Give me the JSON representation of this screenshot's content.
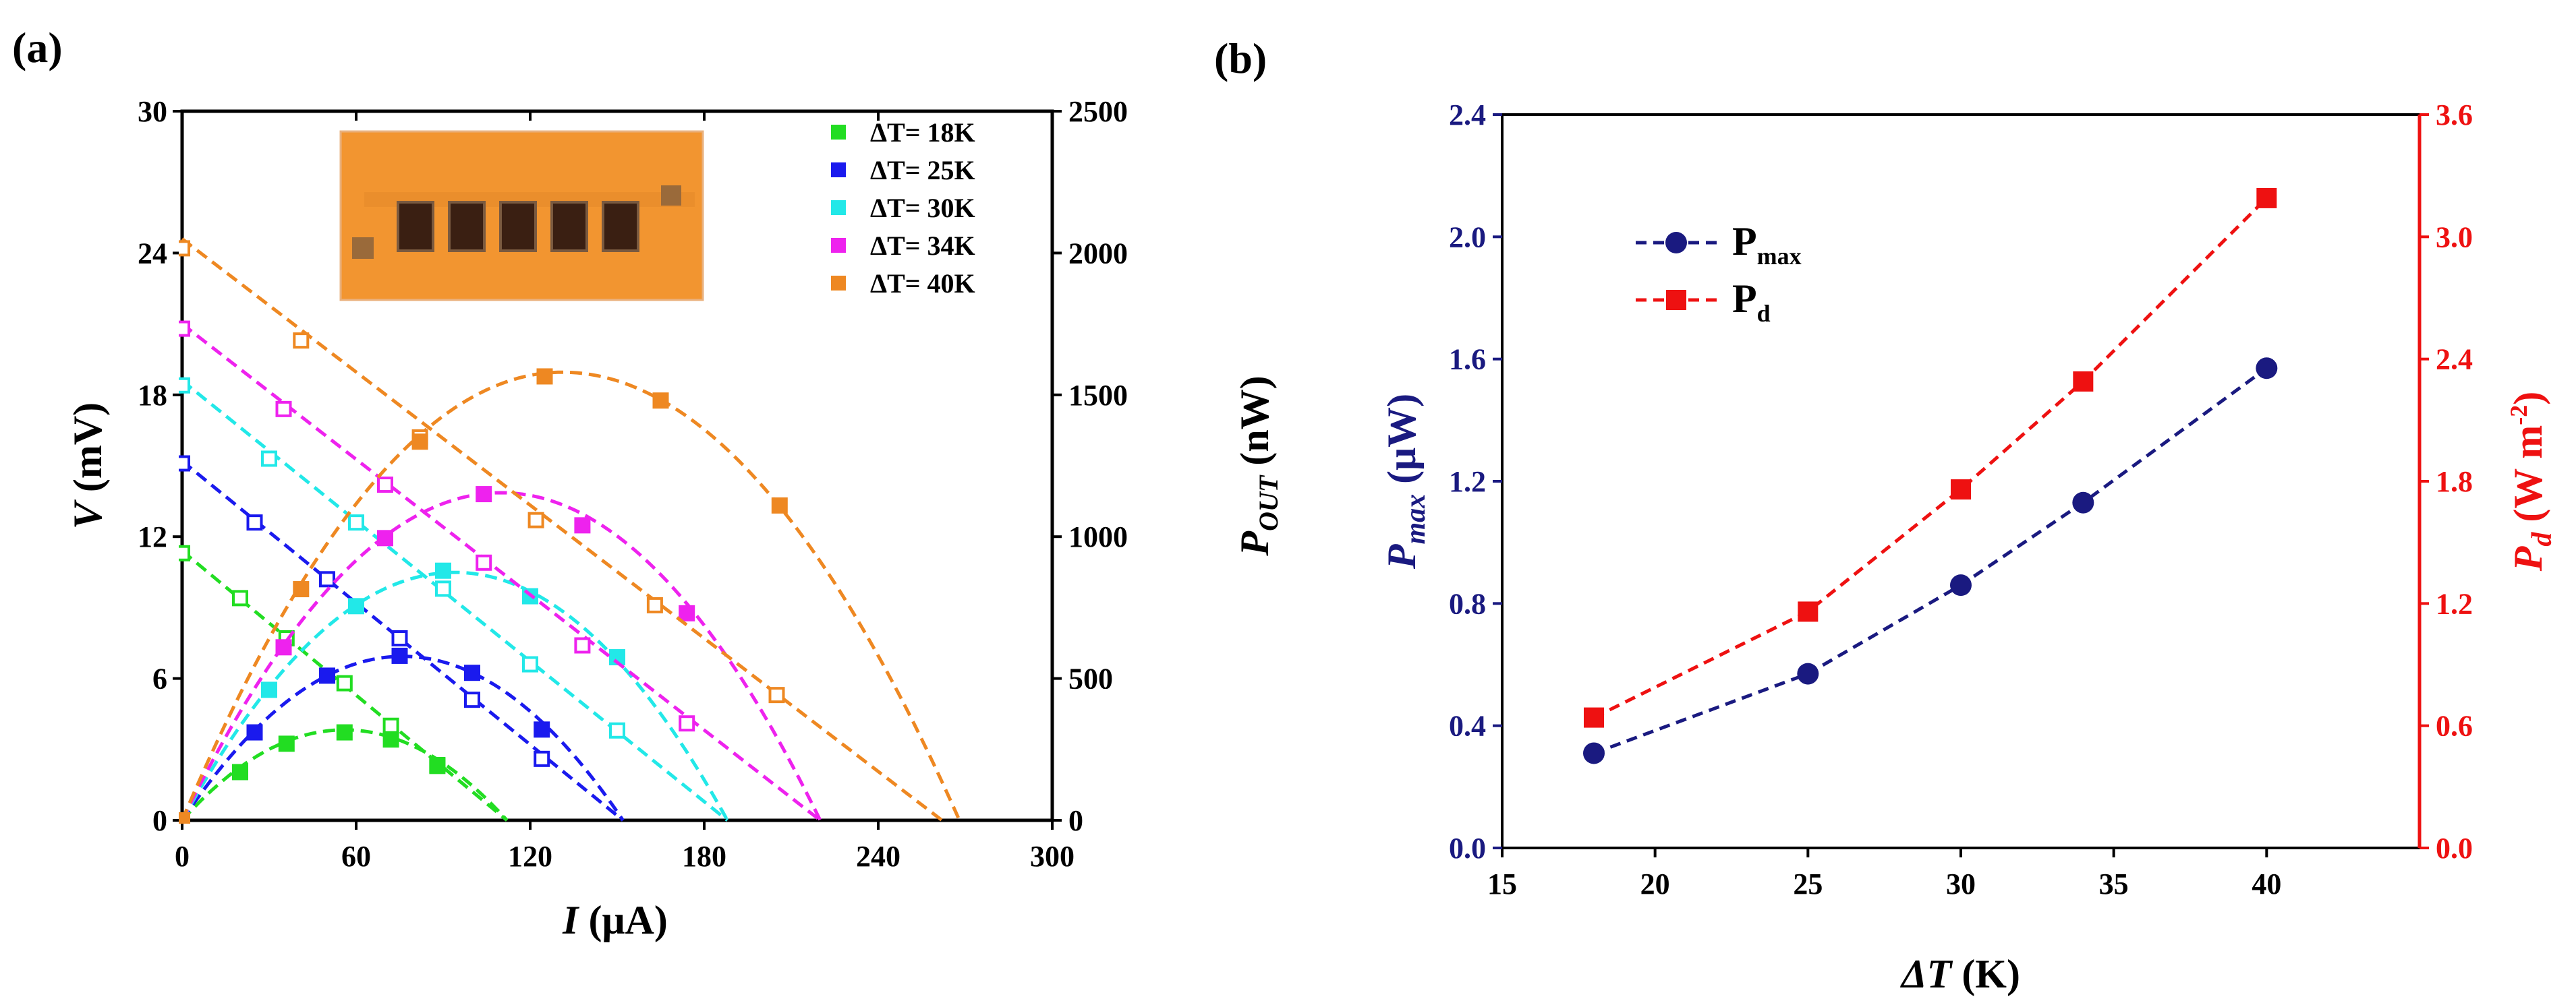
{
  "panels": {
    "a": {
      "label": "(a)"
    },
    "b": {
      "label": "(b)"
    }
  },
  "chart_data": [
    {
      "panel": "(a)",
      "type": "scatter",
      "title": "",
      "xlabel_main": "I",
      "xlabel_unit": " (μA)",
      "ylabel_left_main": "V",
      "ylabel_left_unit": " (mV)",
      "ylabel_right_main": "P",
      "ylabel_right_sub": "OUT",
      "ylabel_right_unit": " (nW)",
      "xlim": [
        0,
        300
      ],
      "ylim_left": [
        0,
        30
      ],
      "ylim_right": [
        0,
        2500
      ],
      "xticks": [
        "0",
        "60",
        "120",
        "180",
        "240",
        "300"
      ],
      "yticks_left": [
        "0",
        "6",
        "12",
        "18",
        "24",
        "30"
      ],
      "yticks_right": [
        "0",
        "500",
        "1000",
        "1500",
        "2000",
        "2500"
      ],
      "legend_position": "top-right",
      "inset": "photograph of device (orange substrate with five dark legs)",
      "series": [
        {
          "name": "ΔT= 18K",
          "color": "#22dd22",
          "voltage_points": [
            [
              0,
              11.3
            ],
            [
              20,
              9.4
            ],
            [
              36,
              7.7
            ],
            [
              56,
              5.8
            ],
            [
              72,
              4.0
            ],
            [
              88,
              2.3
            ]
          ],
          "power_points": [
            [
              0,
              0
            ],
            [
              20,
              170
            ],
            [
              36,
              270
            ],
            [
              56,
              310
            ],
            [
              72,
              285
            ],
            [
              88,
              195
            ]
          ],
          "voltage_fit": [
            [
              0,
              11.4
            ],
            [
              112,
              0
            ]
          ],
          "power_fit_peak": [
            56,
            319
          ],
          "power_fit_zero": 112
        },
        {
          "name": "ΔT= 25K",
          "color": "#1a1aee",
          "voltage_points": [
            [
              0,
              15.1
            ],
            [
              25,
              12.6
            ],
            [
              50,
              10.2
            ],
            [
              75,
              7.7
            ],
            [
              100,
              5.1
            ],
            [
              124,
              2.6
            ]
          ],
          "power_points": [
            [
              0,
              0
            ],
            [
              25,
              310
            ],
            [
              50,
              510
            ],
            [
              75,
              580
            ],
            [
              100,
              520
            ],
            [
              124,
              320
            ]
          ],
          "voltage_fit": [
            [
              0,
              15.2
            ],
            [
              152,
              0
            ]
          ],
          "power_fit_peak": [
            76,
            578
          ],
          "power_fit_zero": 152
        },
        {
          "name": "ΔT= 30K",
          "color": "#22e8e8",
          "voltage_points": [
            [
              0,
              18.4
            ],
            [
              30,
              15.3
            ],
            [
              60,
              12.6
            ],
            [
              90,
              9.8
            ],
            [
              120,
              6.6
            ],
            [
              150,
              3.8
            ]
          ],
          "power_points": [
            [
              0,
              0
            ],
            [
              30,
              460
            ],
            [
              60,
              755
            ],
            [
              90,
              880
            ],
            [
              120,
              790
            ],
            [
              150,
              575
            ]
          ],
          "voltage_fit": [
            [
              0,
              18.6
            ],
            [
              188,
              0
            ]
          ],
          "power_fit_peak": [
            94,
            874
          ],
          "power_fit_zero": 188
        },
        {
          "name": "ΔT= 34K",
          "color": "#ee22ee",
          "voltage_points": [
            [
              0,
              20.8
            ],
            [
              35,
              17.4
            ],
            [
              70,
              14.2
            ],
            [
              104,
              10.9
            ],
            [
              138,
              7.4
            ],
            [
              174,
              4.1
            ]
          ],
          "power_points": [
            [
              0,
              0
            ],
            [
              35,
              610
            ],
            [
              70,
              995
            ],
            [
              104,
              1150
            ],
            [
              138,
              1040
            ],
            [
              174,
              730
            ]
          ],
          "voltage_fit": [
            [
              0,
              21.0
            ],
            [
              220,
              0
            ]
          ],
          "power_fit_peak": [
            110,
            1155
          ],
          "power_fit_zero": 220
        },
        {
          "name": "ΔT= 40K",
          "color": "#ee8822",
          "voltage_points": [
            [
              0,
              24.2
            ],
            [
              41,
              20.3
            ],
            [
              82,
              16.2
            ],
            [
              122,
              12.7
            ],
            [
              163,
              9.1
            ],
            [
              205,
              5.3
            ]
          ],
          "power_points": [
            [
              0,
              0
            ],
            [
              41,
              815
            ],
            [
              82,
              1335
            ],
            [
              125,
              1565
            ],
            [
              165,
              1480
            ],
            [
              206,
              1110
            ]
          ],
          "voltage_fit": [
            [
              0,
              24.6
            ],
            [
              262,
              0
            ]
          ],
          "power_fit_peak": [
            131,
            1580
          ],
          "power_fit_zero": 268
        }
      ]
    },
    {
      "panel": "(b)",
      "type": "line",
      "title": "",
      "xlabel_main": "ΔT",
      "xlabel_unit": " (K)",
      "ylabel_left_main": "P",
      "ylabel_left_sub": "max",
      "ylabel_left_unit": " (μW)",
      "ylabel_right_main": "P",
      "ylabel_right_sub": "d",
      "ylabel_right_unit": " (W m",
      "ylabel_right_sup": "-2",
      "ylabel_right_close": ")",
      "xlim": [
        15,
        45
      ],
      "ylim_left": [
        0,
        2.4
      ],
      "ylim_right": [
        0,
        3.6
      ],
      "xticks": [
        "15",
        "20",
        "25",
        "30",
        "35",
        "40"
      ],
      "yticks_left": [
        "0.0",
        "0.4",
        "0.8",
        "1.2",
        "1.6",
        "2.0",
        "2.4"
      ],
      "yticks_right": [
        "0.0",
        "0.6",
        "1.2",
        "1.8",
        "2.4",
        "3.0",
        "3.6"
      ],
      "legend_position": "top-left",
      "x": [
        18,
        25,
        30,
        34,
        40
      ],
      "series": [
        {
          "name": "P",
          "name_sub": "max",
          "axis": "left",
          "color": "#1a1a80",
          "marker": "circle",
          "values": [
            0.31,
            0.57,
            0.86,
            1.13,
            1.57
          ]
        },
        {
          "name": "P",
          "name_sub": "d",
          "axis": "right",
          "color": "#ee1111",
          "marker": "square",
          "values": [
            0.64,
            1.16,
            1.76,
            2.29,
            3.19
          ]
        }
      ]
    }
  ]
}
